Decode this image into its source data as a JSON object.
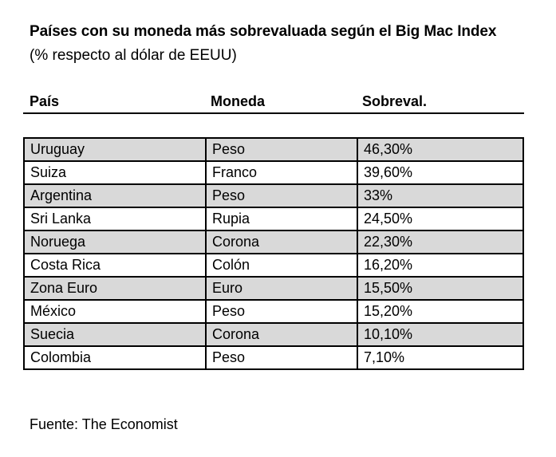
{
  "title": "Países con su moneda más sobrevaluada según el Big Mac Index",
  "subtitle": "(% respecto al dólar de EEUU)",
  "source": "Fuente: The Economist",
  "chart_data": {
    "type": "table",
    "columns": [
      "País",
      "Moneda",
      "Sobreval."
    ],
    "rows": [
      [
        "Uruguay",
        "Peso",
        "46,30%"
      ],
      [
        "Suiza",
        "Franco",
        "39,60%"
      ],
      [
        "Argentina",
        "Peso",
        "33%"
      ],
      [
        "Sri Lanka",
        "Rupia",
        "24,50%"
      ],
      [
        "Noruega",
        "Corona",
        "22,30%"
      ],
      [
        "Costa Rica",
        "Colón",
        "16,20%"
      ],
      [
        "Zona Euro",
        "Euro",
        "15,50%"
      ],
      [
        "México",
        "Peso",
        "15,20%"
      ],
      [
        "Suecia",
        "Corona",
        "10,10%"
      ],
      [
        "Colombia",
        "Peso",
        "7,10%"
      ]
    ],
    "values": [
      46.3,
      39.6,
      33,
      24.5,
      22.3,
      16.2,
      15.5,
      15.2,
      10.1,
      7.1
    ],
    "shaded_row_color": "#d9d9d9",
    "border_color": "#000000"
  }
}
